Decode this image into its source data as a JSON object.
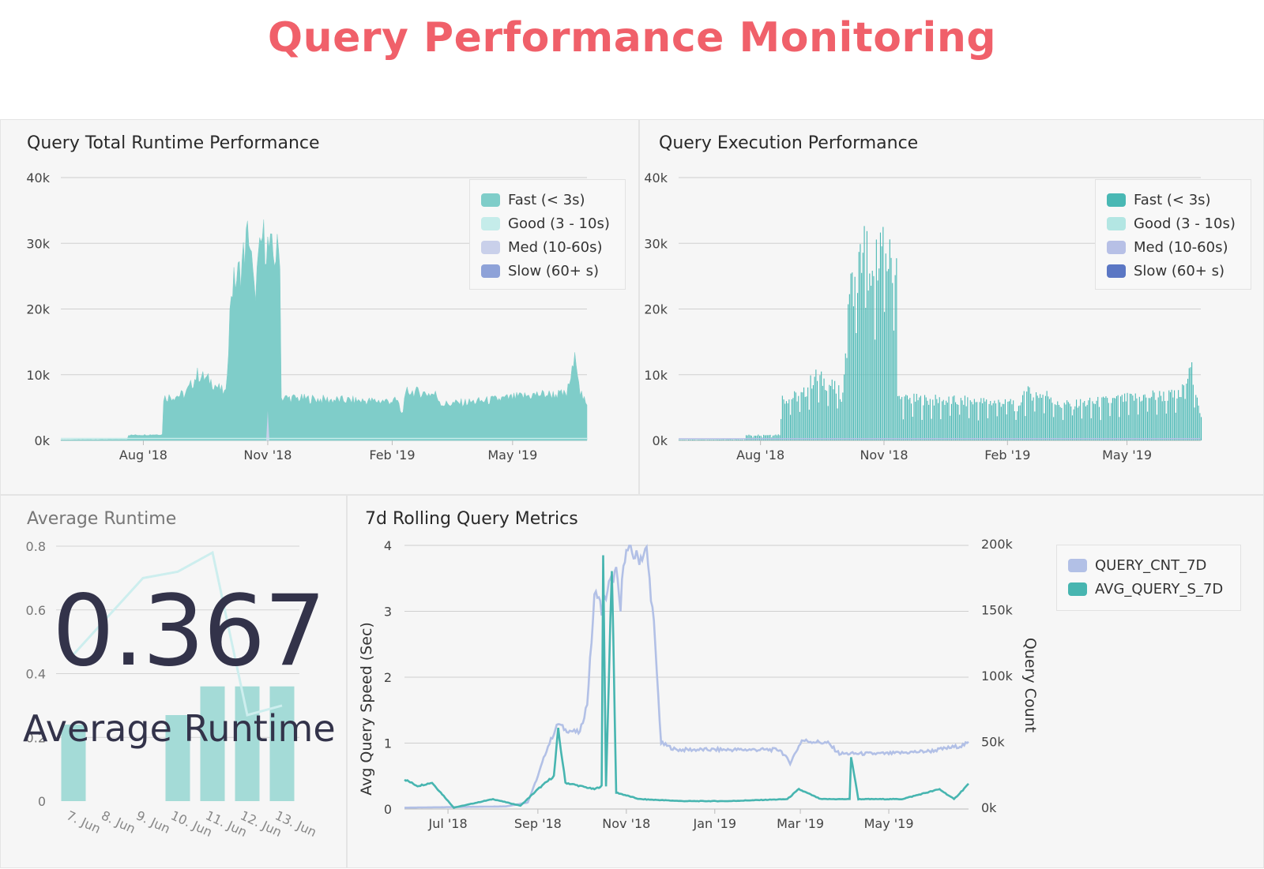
{
  "page": {
    "title": "Query Performance Monitoring"
  },
  "kpi": {
    "value": "0.367",
    "label": "Average Runtime"
  },
  "chart_data": [
    {
      "id": "total-runtime",
      "type": "area",
      "stacked": true,
      "title": "Query Total Runtime Performance",
      "ylim": [
        0,
        40000
      ],
      "yticks": [
        "0k",
        "10k",
        "20k",
        "30k",
        "40k"
      ],
      "xticks": [
        "Aug '18",
        "Nov '18",
        "Feb '19",
        "May '19"
      ],
      "grid": true,
      "legend_position": "top-right",
      "series": [
        {
          "name": "Fast (< 3s)",
          "color": "#7fcdc9"
        },
        {
          "name": "Good (3 - 10s)",
          "color": "#c5ecea"
        },
        {
          "name": "Med (10-60s)",
          "color": "#c9d0ea"
        },
        {
          "name": "Slow (60+ s)",
          "color": "#8ea2d8"
        }
      ],
      "x_range": [
        "2018-06-01",
        "2019-06-25"
      ],
      "fast_values": [
        [
          "2018-06-01",
          100
        ],
        [
          "2018-07-20",
          150
        ],
        [
          "2018-07-21",
          800
        ],
        [
          "2018-08-15",
          900
        ],
        [
          "2018-08-16",
          6500
        ],
        [
          "2018-09-01",
          7000
        ],
        [
          "2018-09-10",
          10000
        ],
        [
          "2018-09-20",
          9000
        ],
        [
          "2018-10-01",
          7000
        ],
        [
          "2018-10-05",
          23000
        ],
        [
          "2018-10-12",
          26000
        ],
        [
          "2018-10-18",
          32000
        ],
        [
          "2018-10-22",
          22000
        ],
        [
          "2018-10-28",
          31000
        ],
        [
          "2018-11-05",
          28000
        ],
        [
          "2018-11-10",
          29000
        ],
        [
          "2018-11-11",
          6500
        ],
        [
          "2018-12-15",
          6200
        ],
        [
          "2019-01-15",
          6000
        ],
        [
          "2019-02-05",
          6000
        ],
        [
          "2019-02-08",
          4000
        ],
        [
          "2019-02-12",
          7500
        ],
        [
          "2019-03-05",
          7000
        ],
        [
          "2019-03-10",
          5500
        ],
        [
          "2019-04-10",
          6000
        ],
        [
          "2019-05-01",
          6500
        ],
        [
          "2019-05-20",
          7000
        ],
        [
          "2019-06-10",
          7000
        ],
        [
          "2019-06-17",
          13000
        ],
        [
          "2019-06-20",
          7500
        ],
        [
          "2019-06-25",
          5000
        ]
      ]
    },
    {
      "id": "execution-perf",
      "type": "bar",
      "stacked": true,
      "title": "Query Execution Performance",
      "ylim": [
        0,
        40000
      ],
      "yticks": [
        "0k",
        "10k",
        "20k",
        "30k",
        "40k"
      ],
      "xticks": [
        "Aug '18",
        "Nov '18",
        "Feb '19",
        "May '19"
      ],
      "grid": true,
      "legend_position": "top-right",
      "series": [
        {
          "name": "Fast (< 3s)",
          "color": "#49b8b4"
        },
        {
          "name": "Good (3 - 10s)",
          "color": "#b3e6e3"
        },
        {
          "name": "Med (10-60s)",
          "color": "#b7c0e6"
        },
        {
          "name": "Slow (60+ s)",
          "color": "#5b77c4"
        }
      ],
      "x_range": [
        "2018-06-01",
        "2019-06-25"
      ],
      "fast_values": [
        [
          "2018-06-01",
          100
        ],
        [
          "2018-07-20",
          150
        ],
        [
          "2018-07-21",
          800
        ],
        [
          "2018-08-15",
          900
        ],
        [
          "2018-08-16",
          6500
        ],
        [
          "2018-09-01",
          7000
        ],
        [
          "2018-09-10",
          10000
        ],
        [
          "2018-09-20",
          9000
        ],
        [
          "2018-10-01",
          7000
        ],
        [
          "2018-10-05",
          23000
        ],
        [
          "2018-10-12",
          26000
        ],
        [
          "2018-10-18",
          32000
        ],
        [
          "2018-10-22",
          22000
        ],
        [
          "2018-10-28",
          31000
        ],
        [
          "2018-11-05",
          28000
        ],
        [
          "2018-11-10",
          29000
        ],
        [
          "2018-11-11",
          6500
        ],
        [
          "2018-12-15",
          6200
        ],
        [
          "2019-01-15",
          6000
        ],
        [
          "2019-02-05",
          6000
        ],
        [
          "2019-02-08",
          4000
        ],
        [
          "2019-02-12",
          7500
        ],
        [
          "2019-03-05",
          7000
        ],
        [
          "2019-03-10",
          5500
        ],
        [
          "2019-04-10",
          6000
        ],
        [
          "2019-05-01",
          6500
        ],
        [
          "2019-05-20",
          7000
        ],
        [
          "2019-06-10",
          7000
        ],
        [
          "2019-06-17",
          13000
        ],
        [
          "2019-06-20",
          7500
        ],
        [
          "2019-06-25",
          4000
        ]
      ]
    },
    {
      "id": "average-runtime",
      "type": "bar",
      "title": "Average Runtime",
      "ylim": [
        0,
        0.8
      ],
      "yticks": [
        "0",
        "0.2",
        "0.4",
        "0.6",
        "0.8"
      ],
      "categories": [
        "7. Jun",
        "8. Jun",
        "9. Jun",
        "10. Jun",
        "11. Jun",
        "12. Jun",
        "13. Jun"
      ],
      "bar_values": [
        0.24,
        0,
        0,
        0.27,
        0.36,
        0.36,
        0.36
      ],
      "line_values": [
        0.46,
        0.58,
        0.7,
        0.72,
        0.78,
        0.27,
        0.3
      ],
      "colors": {
        "bar": "#a4dbd7",
        "line": "#cdeeee"
      }
    },
    {
      "id": "rolling-metrics",
      "type": "line",
      "title": "7d Rolling Query Metrics",
      "ylabel": "Avg Query Speed (Sec)",
      "y2label": "Query Count",
      "ylim": [
        0,
        4
      ],
      "y2lim": [
        0,
        200000
      ],
      "yticks": [
        "0",
        "1",
        "2",
        "3",
        "4"
      ],
      "y2ticks": [
        "0k",
        "50k",
        "100k",
        "150k",
        "200k"
      ],
      "xticks": [
        "Jul '18",
        "Sep '18",
        "Nov '18",
        "Jan '19",
        "Mar '19",
        "May '19"
      ],
      "x_range": [
        "2018-06-01",
        "2019-06-25"
      ],
      "legend_position": "top-right",
      "series": [
        {
          "name": "QUERY_CNT_7D",
          "color": "#b2c0e6",
          "axis": "right",
          "points": [
            [
              "2018-06-01",
              1000
            ],
            [
              "2018-08-10",
              2000
            ],
            [
              "2018-08-25",
              5000
            ],
            [
              "2018-09-01",
              25000
            ],
            [
              "2018-09-07",
              45000
            ],
            [
              "2018-09-15",
              65000
            ],
            [
              "2018-09-20",
              60000
            ],
            [
              "2018-09-30",
              58000
            ],
            [
              "2018-10-05",
              80000
            ],
            [
              "2018-10-10",
              160000
            ],
            [
              "2018-10-12",
              165000
            ],
            [
              "2018-10-15",
              150000
            ],
            [
              "2018-10-20",
              170000
            ],
            [
              "2018-10-25",
              180000
            ],
            [
              "2018-10-28",
              150000
            ],
            [
              "2018-10-30",
              190000
            ],
            [
              "2018-11-02",
              196000
            ],
            [
              "2018-11-10",
              190000
            ],
            [
              "2018-11-15",
              196000
            ],
            [
              "2018-11-20",
              140000
            ],
            [
              "2018-11-25",
              50000
            ],
            [
              "2018-12-05",
              45000
            ],
            [
              "2019-01-15",
              45000
            ],
            [
              "2019-02-15",
              45000
            ],
            [
              "2019-02-22",
              35000
            ],
            [
              "2019-03-02",
              52000
            ],
            [
              "2019-03-20",
              50000
            ],
            [
              "2019-03-28",
              42000
            ],
            [
              "2019-04-30",
              42000
            ],
            [
              "2019-05-30",
              44000
            ],
            [
              "2019-06-20",
              48000
            ],
            [
              "2019-06-25",
              50000
            ]
          ]
        },
        {
          "name": "AVG_QUERY_S_7D",
          "color": "#47b5b0",
          "axis": "left",
          "points": [
            [
              "2018-06-01",
              0.45
            ],
            [
              "2018-06-10",
              0.35
            ],
            [
              "2018-06-20",
              0.4
            ],
            [
              "2018-06-28",
              0.2
            ],
            [
              "2018-07-05",
              0.02
            ],
            [
              "2018-08-01",
              0.15
            ],
            [
              "2018-08-20",
              0.05
            ],
            [
              "2018-09-01",
              0.3
            ],
            [
              "2018-09-12",
              0.5
            ],
            [
              "2018-09-15",
              1.2
            ],
            [
              "2018-09-20",
              0.4
            ],
            [
              "2018-10-10",
              0.3
            ],
            [
              "2018-10-15",
              0.35
            ],
            [
              "2018-10-16",
              3.8
            ],
            [
              "2018-10-18",
              0.35
            ],
            [
              "2018-10-22",
              3.7
            ],
            [
              "2018-10-25",
              0.25
            ],
            [
              "2018-11-10",
              0.15
            ],
            [
              "2018-12-10",
              0.12
            ],
            [
              "2019-01-10",
              0.12
            ],
            [
              "2019-02-20",
              0.15
            ],
            [
              "2019-02-28",
              0.3
            ],
            [
              "2019-03-15",
              0.15
            ],
            [
              "2019-04-04",
              0.15
            ],
            [
              "2019-04-05",
              0.8
            ],
            [
              "2019-04-10",
              0.15
            ],
            [
              "2019-05-10",
              0.15
            ],
            [
              "2019-06-05",
              0.3
            ],
            [
              "2019-06-15",
              0.15
            ],
            [
              "2019-06-25",
              0.38
            ]
          ]
        }
      ]
    }
  ]
}
